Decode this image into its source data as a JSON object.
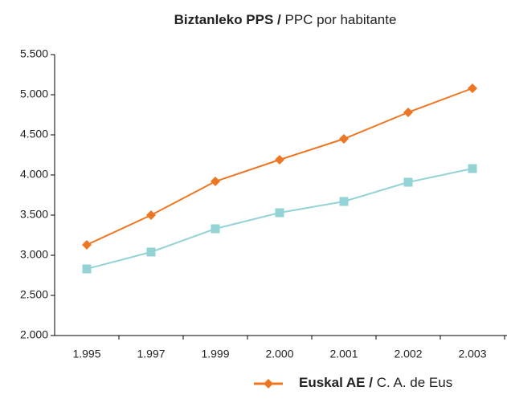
{
  "chart_data": {
    "type": "line",
    "title_parts": [
      "Biztanleko PPS /",
      "PPC por habitante"
    ],
    "categories": [
      "1.995",
      "1.997",
      "1.999",
      "2.000",
      "2.001",
      "2.002",
      "2.003"
    ],
    "series": [
      {
        "name_parts": [
          "Euskal AE /",
          "C. A. de Eus"
        ],
        "color": "#ee7623",
        "marker": "diamond",
        "values": [
          3130,
          3500,
          3920,
          4190,
          4450,
          4780,
          5080
        ]
      },
      {
        "color": "#93d3d6",
        "marker": "square",
        "values": [
          2830,
          3040,
          3330,
          3530,
          3670,
          3910,
          4080
        ]
      }
    ],
    "ylim": [
      2000,
      5500
    ],
    "yticks": [
      {
        "value": 2000,
        "label": "2.000"
      },
      {
        "value": 2500,
        "label": "2.500"
      },
      {
        "value": 3000,
        "label": "3.000"
      },
      {
        "value": 3500,
        "label": "3.500"
      },
      {
        "value": 4000,
        "label": "4.000"
      },
      {
        "value": 4500,
        "label": "4.500"
      },
      {
        "value": 5000,
        "label": "5.000"
      },
      {
        "value": 5500,
        "label": "5.500"
      }
    ],
    "grid": false
  }
}
